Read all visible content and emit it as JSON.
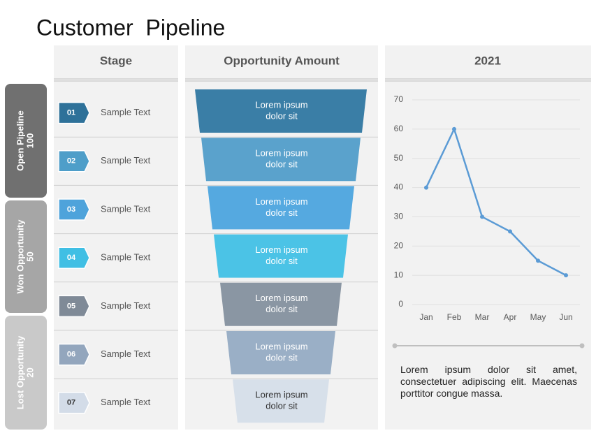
{
  "title": "Customer  Pipeline",
  "headers": {
    "stage": "Stage",
    "opportunity": "Opportunity Amount"
  },
  "groups": [
    {
      "label": "Open Pipeline",
      "value": 100
    },
    {
      "label": "Won Opportunity",
      "value": 50
    },
    {
      "label": "Lost Opportunity",
      "value": 20
    }
  ],
  "stages": [
    {
      "number": "01",
      "text": "Sample Text"
    },
    {
      "number": "02",
      "text": "Sample Text"
    },
    {
      "number": "03",
      "text": "Sample Text"
    },
    {
      "number": "04",
      "text": "Sample Text"
    },
    {
      "number": "05",
      "text": "Sample Text"
    },
    {
      "number": "06",
      "text": "Sample Text"
    },
    {
      "number": "07",
      "text": "Sample Text"
    }
  ],
  "funnel": [
    {
      "lines": [
        "Lorem ipsum",
        "dolor sit"
      ]
    },
    {
      "lines": [
        "Lorem ipsum",
        "dolor sit"
      ]
    },
    {
      "lines": [
        "Lorem ipsum",
        "dolor sit"
      ]
    },
    {
      "lines": [
        "Lorem ipsum",
        "dolor sit"
      ]
    },
    {
      "lines": [
        "Lorem ipsum",
        "dolor sit"
      ]
    },
    {
      "lines": [
        "Lorem ipsum",
        "dolor sit"
      ]
    },
    {
      "lines": [
        "Lorem ipsum",
        "dolor sit"
      ]
    }
  ],
  "chart_data": {
    "type": "line",
    "title": "2021",
    "categories": [
      "Jan",
      "Feb",
      "Mar",
      "Apr",
      "May",
      "Jun"
    ],
    "values": [
      40,
      60,
      30,
      25,
      15,
      10
    ],
    "color": "#5b9bd5",
    "ylim": [
      0,
      70
    ],
    "yticks": [
      0,
      10,
      20,
      30,
      40,
      50,
      60,
      70
    ],
    "grid": true
  },
  "note": "Lorem ipsum dolor sit amet, consectetuer adipiscing elit. Maecenas porttitor congue massa."
}
